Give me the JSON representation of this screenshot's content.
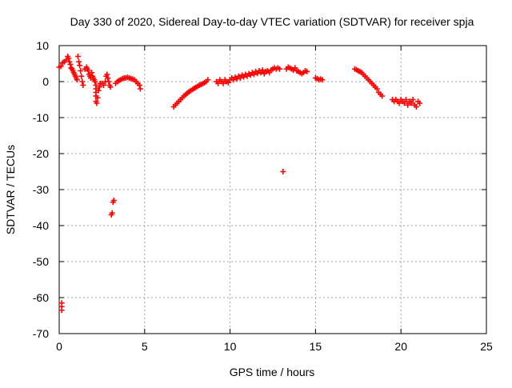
{
  "chart_data": {
    "type": "scatter",
    "title": "Day 330 of 2020, Sidereal Day-to-day VTEC variation (SDTVAR) for receiver spja",
    "xlabel": "GPS time / hours",
    "ylabel": "SDTVAR / TECUs",
    "xlim": [
      0,
      25
    ],
    "ylim": [
      -70,
      10
    ],
    "xticks": [
      0,
      5,
      10,
      15,
      20,
      25
    ],
    "yticks": [
      10,
      0,
      -10,
      -20,
      -30,
      -40,
      -50,
      -60,
      -70
    ],
    "grid": true,
    "marker": "+",
    "color": "#ff0000",
    "series": [
      {
        "name": "SDTVAR",
        "points": [
          [
            0.0,
            4.0
          ],
          [
            0.1,
            4.3
          ],
          [
            0.15,
            -61.5
          ],
          [
            0.15,
            -62.5
          ],
          [
            0.15,
            -63.5
          ],
          [
            0.2,
            5.2
          ],
          [
            0.3,
            5.5
          ],
          [
            0.4,
            6.0
          ],
          [
            0.5,
            7.0
          ],
          [
            0.55,
            6.5
          ],
          [
            0.6,
            5.5
          ],
          [
            0.65,
            4.8
          ],
          [
            0.7,
            3.8
          ],
          [
            0.75,
            3.5
          ],
          [
            0.8,
            3.0
          ],
          [
            0.85,
            2.5
          ],
          [
            0.9,
            2.0
          ],
          [
            0.95,
            1.5
          ],
          [
            1.0,
            1.0
          ],
          [
            1.05,
            0.5
          ],
          [
            1.1,
            7.0
          ],
          [
            1.15,
            5.5
          ],
          [
            1.2,
            4.5
          ],
          [
            1.25,
            3.0
          ],
          [
            1.3,
            1.5
          ],
          [
            1.35,
            0.0
          ],
          [
            1.4,
            -1.0
          ],
          [
            1.5,
            3.5
          ],
          [
            1.6,
            4.0
          ],
          [
            1.65,
            3.5
          ],
          [
            1.7,
            3.0
          ],
          [
            1.75,
            2.0
          ],
          [
            1.8,
            1.5
          ],
          [
            1.85,
            1.0
          ],
          [
            1.9,
            2.5
          ],
          [
            1.95,
            1.5
          ],
          [
            2.0,
            1.0
          ],
          [
            2.05,
            0.5
          ],
          [
            2.1,
            0.0
          ],
          [
            2.15,
            -1.0
          ],
          [
            2.15,
            -2.0
          ],
          [
            2.15,
            -3.0
          ],
          [
            2.15,
            -4.0
          ],
          [
            2.15,
            -5.5
          ],
          [
            2.2,
            -6.0
          ],
          [
            2.25,
            -4.5
          ],
          [
            2.3,
            -2.5
          ],
          [
            2.35,
            -1.5
          ],
          [
            2.4,
            -0.5
          ],
          [
            2.5,
            -0.5
          ],
          [
            2.6,
            -1.0
          ],
          [
            2.7,
            0.0
          ],
          [
            2.75,
            1.5
          ],
          [
            2.8,
            2.0
          ],
          [
            2.85,
            1.0
          ],
          [
            2.9,
            0.0
          ],
          [
            2.95,
            -1.0
          ],
          [
            3.0,
            -1.5
          ],
          [
            3.05,
            -37.0
          ],
          [
            3.1,
            -36.5
          ],
          [
            3.15,
            -33.5
          ],
          [
            3.2,
            -33.0
          ],
          [
            3.3,
            -0.5
          ],
          [
            3.4,
            0.0
          ],
          [
            3.5,
            0.3
          ],
          [
            3.6,
            0.5
          ],
          [
            3.7,
            0.8
          ],
          [
            3.8,
            1.0
          ],
          [
            3.9,
            1.0
          ],
          [
            4.0,
            1.2
          ],
          [
            4.1,
            1.0
          ],
          [
            4.2,
            0.8
          ],
          [
            4.3,
            0.7
          ],
          [
            4.4,
            0.5
          ],
          [
            4.5,
            0.0
          ],
          [
            4.6,
            -0.5
          ],
          [
            4.7,
            -1.0
          ],
          [
            4.75,
            -2.0
          ],
          [
            6.7,
            -7.0
          ],
          [
            6.8,
            -6.5
          ],
          [
            6.9,
            -6.0
          ],
          [
            7.0,
            -5.5
          ],
          [
            7.1,
            -5.0
          ],
          [
            7.2,
            -4.5
          ],
          [
            7.3,
            -4.0
          ],
          [
            7.4,
            -3.6
          ],
          [
            7.5,
            -3.2
          ],
          [
            7.6,
            -2.8
          ],
          [
            7.7,
            -2.5
          ],
          [
            7.8,
            -2.2
          ],
          [
            7.9,
            -1.9
          ],
          [
            8.0,
            -1.6
          ],
          [
            8.1,
            -1.3
          ],
          [
            8.2,
            -1.0
          ],
          [
            8.3,
            -0.8
          ],
          [
            8.4,
            -0.6
          ],
          [
            8.5,
            -0.3
          ],
          [
            8.6,
            0.0
          ],
          [
            8.7,
            0.5
          ],
          [
            9.2,
            0.0
          ],
          [
            9.3,
            -0.5
          ],
          [
            9.4,
            0.5
          ],
          [
            9.5,
            0.0
          ],
          [
            9.6,
            -0.5
          ],
          [
            9.7,
            0.5
          ],
          [
            9.8,
            0.0
          ],
          [
            9.9,
            -0.3
          ],
          [
            10.0,
            0.5
          ],
          [
            10.1,
            1.0
          ],
          [
            10.2,
            0.5
          ],
          [
            10.3,
            1.2
          ],
          [
            10.4,
            0.8
          ],
          [
            10.5,
            1.5
          ],
          [
            10.6,
            1.0
          ],
          [
            10.7,
            1.8
          ],
          [
            10.8,
            1.3
          ],
          [
            10.9,
            2.0
          ],
          [
            11.0,
            1.5
          ],
          [
            11.1,
            2.2
          ],
          [
            11.2,
            1.8
          ],
          [
            11.3,
            2.5
          ],
          [
            11.4,
            2.0
          ],
          [
            11.5,
            2.8
          ],
          [
            11.6,
            2.3
          ],
          [
            11.7,
            3.0
          ],
          [
            11.8,
            2.5
          ],
          [
            11.9,
            3.2
          ],
          [
            12.0,
            2.2
          ],
          [
            12.1,
            2.8
          ],
          [
            12.2,
            3.0
          ],
          [
            12.3,
            2.5
          ],
          [
            12.4,
            3.2
          ],
          [
            12.5,
            3.5
          ],
          [
            12.6,
            3.8
          ],
          [
            12.7,
            3.5
          ],
          [
            12.8,
            3.8
          ],
          [
            12.9,
            3.5
          ],
          [
            13.1,
            -25.0
          ],
          [
            13.3,
            3.5
          ],
          [
            13.4,
            4.0
          ],
          [
            13.5,
            3.8
          ],
          [
            13.6,
            3.5
          ],
          [
            13.7,
            3.2
          ],
          [
            13.8,
            3.8
          ],
          [
            13.9,
            3.0
          ],
          [
            14.0,
            2.8
          ],
          [
            14.1,
            2.5
          ],
          [
            14.2,
            2.2
          ],
          [
            14.3,
            2.5
          ],
          [
            14.4,
            3.0
          ],
          [
            14.5,
            2.8
          ],
          [
            15.0,
            1.0
          ],
          [
            15.1,
            0.8
          ],
          [
            15.2,
            0.5
          ],
          [
            15.3,
            0.7
          ],
          [
            15.4,
            0.5
          ],
          [
            17.3,
            3.5
          ],
          [
            17.4,
            3.3
          ],
          [
            17.5,
            3.0
          ],
          [
            17.6,
            2.8
          ],
          [
            17.7,
            2.5
          ],
          [
            17.8,
            2.0
          ],
          [
            17.9,
            1.5
          ],
          [
            18.0,
            1.0
          ],
          [
            18.1,
            0.5
          ],
          [
            18.2,
            0.0
          ],
          [
            18.3,
            -0.5
          ],
          [
            18.4,
            -1.0
          ],
          [
            18.5,
            -1.5
          ],
          [
            18.6,
            -2.0
          ],
          [
            18.7,
            -3.0
          ],
          [
            18.8,
            -3.5
          ],
          [
            18.9,
            -4.0
          ],
          [
            19.5,
            -5.0
          ],
          [
            19.6,
            -5.5
          ],
          [
            19.7,
            -5.0
          ],
          [
            19.8,
            -5.5
          ],
          [
            19.9,
            -6.0
          ],
          [
            20.0,
            -5.0
          ],
          [
            20.1,
            -5.5
          ],
          [
            20.2,
            -6.0
          ],
          [
            20.3,
            -5.0
          ],
          [
            20.4,
            -6.5
          ],
          [
            20.5,
            -5.5
          ],
          [
            20.6,
            -6.0
          ],
          [
            20.7,
            -5.0
          ],
          [
            20.8,
            -6.5
          ],
          [
            20.9,
            -7.0
          ],
          [
            21.0,
            -5.5
          ],
          [
            21.1,
            -6.0
          ]
        ]
      }
    ]
  }
}
